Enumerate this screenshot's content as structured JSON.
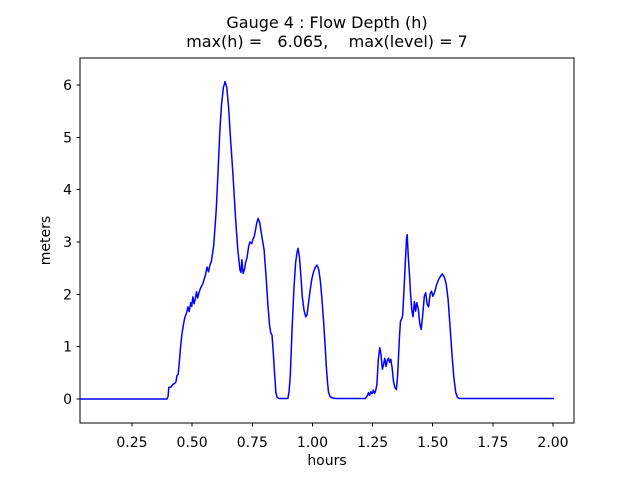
{
  "figure": {
    "background": "#ffffff",
    "kind": "matplotlib-line-plot"
  },
  "chart": {
    "title_line1": "Gauge 4 : Flow Depth (h)",
    "title_line2": "max(h) =   6.065,    max(level) = 7"
  },
  "chart_data": {
    "type": "line",
    "title": "Gauge 4 : Flow Depth (h)",
    "subtitle": "max(h) =   6.065,    max(level) = 7",
    "max_h": 6.065,
    "max_level": 7,
    "xlabel": "hours",
    "ylabel": "meters",
    "line_color": "#0000ff",
    "axes_color": "#000000",
    "grid": false,
    "legend": null,
    "xlim": [
      0.0339,
      2.0873
    ],
    "ylim": [
      -0.459,
      6.516
    ],
    "xticks": [
      0.25,
      0.5,
      0.75,
      1.0,
      1.25,
      1.5,
      1.75,
      2.0
    ],
    "xtick_labels": [
      "0.25",
      "0.50",
      "0.75",
      "1.00",
      "1.25",
      "1.50",
      "1.75",
      "2.00"
    ],
    "yticks": [
      0,
      1,
      2,
      3,
      4,
      5,
      6
    ],
    "ytick_labels": [
      "0",
      "1",
      "2",
      "3",
      "4",
      "5",
      "6"
    ],
    "series": [
      {
        "name": "h",
        "points": [
          [
            0.034,
            0
          ],
          [
            0.395,
            0
          ],
          [
            0.4,
            0.05
          ],
          [
            0.403,
            0.22
          ],
          [
            0.412,
            0.23
          ],
          [
            0.42,
            0.28
          ],
          [
            0.428,
            0.3
          ],
          [
            0.433,
            0.33
          ],
          [
            0.437,
            0.45
          ],
          [
            0.442,
            0.47
          ],
          [
            0.447,
            0.72
          ],
          [
            0.452,
            1.0
          ],
          [
            0.458,
            1.25
          ],
          [
            0.465,
            1.45
          ],
          [
            0.47,
            1.56
          ],
          [
            0.478,
            1.66
          ],
          [
            0.483,
            1.76
          ],
          [
            0.488,
            1.67
          ],
          [
            0.494,
            1.84
          ],
          [
            0.498,
            1.77
          ],
          [
            0.503,
            1.95
          ],
          [
            0.508,
            1.82
          ],
          [
            0.513,
            1.91
          ],
          [
            0.518,
            2.05
          ],
          [
            0.523,
            1.93
          ],
          [
            0.528,
            2.03
          ],
          [
            0.535,
            2.12
          ],
          [
            0.545,
            2.21
          ],
          [
            0.556,
            2.38
          ],
          [
            0.562,
            2.52
          ],
          [
            0.568,
            2.43
          ],
          [
            0.574,
            2.56
          ],
          [
            0.58,
            2.63
          ],
          [
            0.59,
            2.95
          ],
          [
            0.6,
            3.6
          ],
          [
            0.607,
            4.28
          ],
          [
            0.615,
            5.1
          ],
          [
            0.622,
            5.62
          ],
          [
            0.63,
            5.95
          ],
          [
            0.637,
            6.065
          ],
          [
            0.644,
            5.95
          ],
          [
            0.652,
            5.55
          ],
          [
            0.66,
            4.95
          ],
          [
            0.67,
            4.28
          ],
          [
            0.68,
            3.5
          ],
          [
            0.69,
            2.85
          ],
          [
            0.699,
            2.46
          ],
          [
            0.703,
            2.42
          ],
          [
            0.707,
            2.66
          ],
          [
            0.712,
            2.4
          ],
          [
            0.718,
            2.48
          ],
          [
            0.722,
            2.6
          ],
          [
            0.728,
            2.7
          ],
          [
            0.735,
            2.92
          ],
          [
            0.74,
            3.0
          ],
          [
            0.748,
            2.97
          ],
          [
            0.753,
            3.06
          ],
          [
            0.758,
            3.1
          ],
          [
            0.763,
            3.22
          ],
          [
            0.768,
            3.35
          ],
          [
            0.774,
            3.45
          ],
          [
            0.781,
            3.37
          ],
          [
            0.79,
            3.1
          ],
          [
            0.799,
            2.85
          ],
          [
            0.808,
            2.3
          ],
          [
            0.815,
            1.8
          ],
          [
            0.822,
            1.4
          ],
          [
            0.827,
            1.26
          ],
          [
            0.832,
            1.22
          ],
          [
            0.838,
            0.85
          ],
          [
            0.843,
            0.45
          ],
          [
            0.848,
            0.12
          ],
          [
            0.853,
            0.03
          ],
          [
            0.862,
            0.01
          ],
          [
            0.898,
            0.01
          ],
          [
            0.903,
            0.15
          ],
          [
            0.908,
            0.45
          ],
          [
            0.915,
            1.3
          ],
          [
            0.923,
            2.1
          ],
          [
            0.93,
            2.6
          ],
          [
            0.936,
            2.8
          ],
          [
            0.94,
            2.88
          ],
          [
            0.946,
            2.72
          ],
          [
            0.952,
            2.35
          ],
          [
            0.958,
            1.95
          ],
          [
            0.965,
            1.7
          ],
          [
            0.972,
            1.57
          ],
          [
            0.978,
            1.61
          ],
          [
            0.984,
            1.85
          ],
          [
            0.991,
            2.1
          ],
          [
            0.998,
            2.3
          ],
          [
            1.006,
            2.45
          ],
          [
            1.013,
            2.52
          ],
          [
            1.019,
            2.56
          ],
          [
            1.026,
            2.48
          ],
          [
            1.033,
            2.25
          ],
          [
            1.04,
            1.9
          ],
          [
            1.047,
            1.45
          ],
          [
            1.053,
            1.0
          ],
          [
            1.058,
            0.6
          ],
          [
            1.063,
            0.3
          ],
          [
            1.067,
            0.13
          ],
          [
            1.073,
            0.05
          ],
          [
            1.082,
            0.02
          ],
          [
            1.095,
            0.01
          ],
          [
            1.22,
            0.01
          ],
          [
            1.228,
            0.06
          ],
          [
            1.233,
            0.12
          ],
          [
            1.238,
            0.07
          ],
          [
            1.243,
            0.14
          ],
          [
            1.248,
            0.1
          ],
          [
            1.253,
            0.17
          ],
          [
            1.258,
            0.1
          ],
          [
            1.263,
            0.16
          ],
          [
            1.268,
            0.28
          ],
          [
            1.274,
            0.75
          ],
          [
            1.28,
            0.98
          ],
          [
            1.285,
            0.85
          ],
          [
            1.291,
            0.57
          ],
          [
            1.296,
            0.66
          ],
          [
            1.301,
            0.78
          ],
          [
            1.306,
            0.62
          ],
          [
            1.311,
            0.73
          ],
          [
            1.316,
            0.78
          ],
          [
            1.321,
            0.7
          ],
          [
            1.326,
            0.76
          ],
          [
            1.331,
            0.6
          ],
          [
            1.337,
            0.33
          ],
          [
            1.343,
            0.22
          ],
          [
            1.349,
            0.18
          ],
          [
            1.354,
            0.45
          ],
          [
            1.358,
            0.8
          ],
          [
            1.362,
            1.2
          ],
          [
            1.366,
            1.49
          ],
          [
            1.371,
            1.53
          ],
          [
            1.375,
            1.59
          ],
          [
            1.38,
            2.0
          ],
          [
            1.386,
            2.6
          ],
          [
            1.391,
            3.05
          ],
          [
            1.394,
            3.14
          ],
          [
            1.398,
            2.75
          ],
          [
            1.403,
            2.4
          ],
          [
            1.408,
            2.0
          ],
          [
            1.413,
            1.7
          ],
          [
            1.418,
            1.57
          ],
          [
            1.424,
            1.86
          ],
          [
            1.429,
            1.68
          ],
          [
            1.434,
            1.84
          ],
          [
            1.44,
            1.72
          ],
          [
            1.446,
            1.45
          ],
          [
            1.452,
            1.33
          ],
          [
            1.459,
            1.62
          ],
          [
            1.465,
            1.96
          ],
          [
            1.471,
            2.03
          ],
          [
            1.477,
            1.81
          ],
          [
            1.483,
            1.76
          ],
          [
            1.489,
            2.0
          ],
          [
            1.495,
            2.06
          ],
          [
            1.501,
            1.96
          ],
          [
            1.509,
            2.06
          ],
          [
            1.516,
            2.18
          ],
          [
            1.524,
            2.28
          ],
          [
            1.532,
            2.34
          ],
          [
            1.54,
            2.39
          ],
          [
            1.548,
            2.33
          ],
          [
            1.556,
            2.2
          ],
          [
            1.564,
            1.9
          ],
          [
            1.572,
            1.4
          ],
          [
            1.58,
            0.85
          ],
          [
            1.588,
            0.4
          ],
          [
            1.596,
            0.12
          ],
          [
            1.603,
            0.03
          ],
          [
            1.612,
            0.01
          ],
          [
            2.004,
            0.01
          ]
        ]
      }
    ]
  }
}
